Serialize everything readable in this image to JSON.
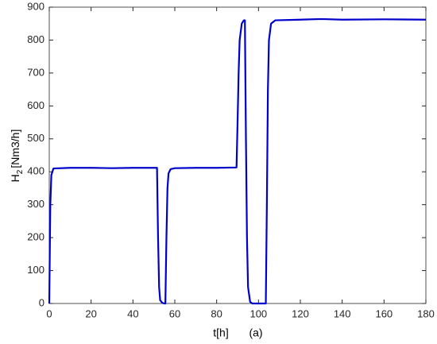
{
  "chart_data": {
    "type": "line",
    "ylabel": {
      "main": "H",
      "sub": "2",
      "unit": "[Nm3/h]"
    },
    "xlabel": "t[h]",
    "annotation": "(a)",
    "x": [
      0,
      0.5,
      1,
      2,
      10,
      20,
      30,
      40,
      51.5,
      52,
      52.5,
      53,
      54,
      55,
      55.5,
      56,
      56.5,
      57,
      58,
      60,
      70,
      80,
      89.5,
      90,
      90.5,
      91,
      92,
      93,
      93.5,
      94,
      94.5,
      95,
      96,
      97,
      103.5,
      104,
      104.5,
      105,
      106,
      108,
      120,
      130,
      140,
      160,
      180
    ],
    "series": [
      {
        "name": "H2",
        "color": "#0000cc",
        "values": [
          0,
          300,
          390,
          410,
          412,
          412,
          411,
          412,
          412,
          200,
          50,
          10,
          2,
          0,
          0,
          200,
          350,
          395,
          408,
          411,
          412,
          412,
          413,
          550,
          700,
          800,
          850,
          860,
          860,
          500,
          200,
          50,
          5,
          0,
          0,
          300,
          650,
          800,
          850,
          860,
          862,
          864,
          862,
          863,
          862
        ]
      }
    ],
    "xlim": [
      0,
      180
    ],
    "xticks": [
      0,
      20,
      40,
      60,
      80,
      100,
      120,
      140,
      160,
      180
    ],
    "ylim": [
      0,
      900
    ],
    "yticks": [
      0,
      100,
      200,
      300,
      400,
      500,
      600,
      700,
      800,
      900
    ],
    "grid": false
  }
}
